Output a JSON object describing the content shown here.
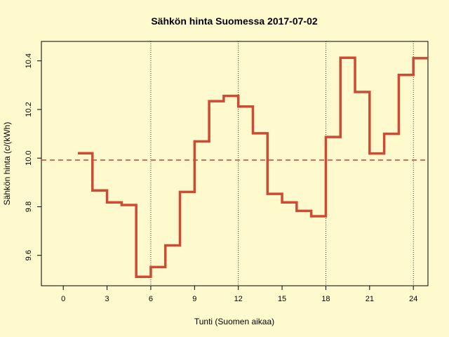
{
  "chart_data": {
    "type": "line",
    "title": "Sähkön hinta Suomessa 2017-07-02",
    "xlabel": "Tunti (Suomen aikaa)",
    "ylabel": "Sähkön hinta (c/(kWh)",
    "xlim": [
      -1.5,
      25
    ],
    "ylim": [
      9.475,
      10.48
    ],
    "x_ticks": [
      0,
      3,
      6,
      9,
      12,
      15,
      18,
      21,
      24
    ],
    "y_ticks": [
      9.6,
      9.8,
      10.0,
      10.2,
      10.4
    ],
    "y_tick_labels": [
      "9.6",
      "9.8",
      "10.0",
      "10.2",
      "10.4"
    ],
    "vertical_reference_lines": [
      6,
      12,
      18,
      24
    ],
    "mean_line_value": 9.992,
    "series": [
      {
        "step": "post",
        "x": [
          1,
          2,
          3,
          4,
          5,
          6,
          7,
          8,
          9,
          10,
          11,
          12,
          13,
          14,
          15,
          16,
          17,
          18,
          19,
          20,
          21,
          22,
          23,
          24
        ],
        "values": [
          10.02,
          9.867,
          9.818,
          9.807,
          9.512,
          9.552,
          9.641,
          9.861,
          10.069,
          10.234,
          10.256,
          10.212,
          10.102,
          9.853,
          9.818,
          9.783,
          9.761,
          10.087,
          10.413,
          10.272,
          10.019,
          10.1,
          10.342,
          10.411
        ]
      }
    ],
    "colors": {
      "series": "#cd4a35",
      "mean_line": "#cd3f35",
      "background": "#fffacd",
      "axis": "#000000"
    },
    "grid": false
  }
}
